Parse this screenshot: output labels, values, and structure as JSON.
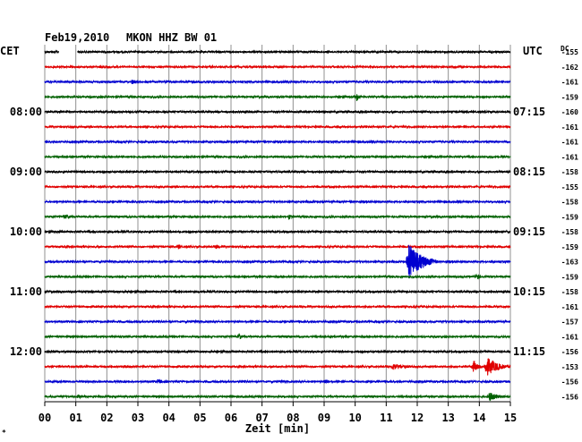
{
  "header": {
    "date": "Feb19,2010",
    "station": "MKON HHZ BW 01"
  },
  "left_timezone": "CET",
  "right_timezone": "UTC",
  "right_column_header": "DC",
  "footer_mark": "*",
  "chart_data": {
    "type": "line",
    "description_free": true,
    "xlabel": "Zeit [min]",
    "xlim": [
      0,
      15
    ],
    "x_ticks": [
      "00",
      "01",
      "02",
      "03",
      "04",
      "05",
      "06",
      "07",
      "08",
      "09",
      "10",
      "11",
      "12",
      "13",
      "14",
      "15"
    ],
    "left_hour_labels": [
      {
        "row": 4,
        "label": "08:00"
      },
      {
        "row": 8,
        "label": "09:00"
      },
      {
        "row": 12,
        "label": "10:00"
      },
      {
        "row": 16,
        "label": "11:00"
      },
      {
        "row": 20,
        "label": "12:00"
      }
    ],
    "right_hour_labels": [
      {
        "row": 4,
        "label": "07:15"
      },
      {
        "row": 8,
        "label": "08:15"
      },
      {
        "row": 12,
        "label": "09:15"
      },
      {
        "row": 16,
        "label": "10:15"
      },
      {
        "row": 20,
        "label": "11:15"
      }
    ],
    "series_colors": [
      "#000000",
      "#e00000",
      "#0000d0",
      "#006000"
    ],
    "traces": [
      {
        "row": 0,
        "color": "#000000",
        "dc": "-155",
        "gaps": [
          [
            0.45,
            1.05
          ]
        ],
        "events": []
      },
      {
        "row": 1,
        "color": "#e00000",
        "dc": "-162",
        "events": []
      },
      {
        "row": 2,
        "color": "#0000d0",
        "dc": "-161",
        "events": [
          {
            "t": 2.8,
            "amp": 3,
            "dur": 0.4
          }
        ]
      },
      {
        "row": 3,
        "color": "#006000",
        "dc": "-159",
        "events": [
          {
            "t": 10.05,
            "amp": 5,
            "dur": 0.2
          }
        ]
      },
      {
        "row": 4,
        "color": "#000000",
        "dc": "-160",
        "events": []
      },
      {
        "row": 5,
        "color": "#e00000",
        "dc": "-161",
        "events": []
      },
      {
        "row": 6,
        "color": "#0000d0",
        "dc": "-161",
        "events": []
      },
      {
        "row": 7,
        "color": "#006000",
        "dc": "-161",
        "events": []
      },
      {
        "row": 8,
        "color": "#000000",
        "dc": "-158",
        "events": []
      },
      {
        "row": 9,
        "color": "#e00000",
        "dc": "-155",
        "events": []
      },
      {
        "row": 10,
        "color": "#0000d0",
        "dc": "-158",
        "events": []
      },
      {
        "row": 11,
        "color": "#006000",
        "dc": "-159",
        "events": [
          {
            "t": 0.6,
            "amp": 3,
            "dur": 0.6
          },
          {
            "t": 7.85,
            "amp": 3,
            "dur": 0.3
          }
        ]
      },
      {
        "row": 12,
        "color": "#000000",
        "dc": "-158",
        "events": []
      },
      {
        "row": 13,
        "color": "#e00000",
        "dc": "-159",
        "events": [
          {
            "t": 4.3,
            "amp": 3,
            "dur": 0.3
          },
          {
            "t": 5.5,
            "amp": 3,
            "dur": 0.3
          }
        ]
      },
      {
        "row": 14,
        "color": "#0000d0",
        "dc": "-163",
        "events": [
          {
            "t": 11.7,
            "amp": 22,
            "dur": 0.9
          }
        ]
      },
      {
        "row": 15,
        "color": "#006000",
        "dc": "-159",
        "events": [
          {
            "t": 13.9,
            "amp": 6,
            "dur": 0.2
          }
        ]
      },
      {
        "row": 16,
        "color": "#000000",
        "dc": "-158",
        "events": []
      },
      {
        "row": 17,
        "color": "#e00000",
        "dc": "-161",
        "events": []
      },
      {
        "row": 18,
        "color": "#0000d0",
        "dc": "-157",
        "events": []
      },
      {
        "row": 19,
        "color": "#006000",
        "dc": "-161",
        "events": [
          {
            "t": 6.25,
            "amp": 5,
            "dur": 0.2
          }
        ]
      },
      {
        "row": 20,
        "color": "#000000",
        "dc": "-156",
        "events": []
      },
      {
        "row": 21,
        "color": "#e00000",
        "dc": "-153",
        "events": [
          {
            "t": 11.2,
            "amp": 4,
            "dur": 1.0
          },
          {
            "t": 13.8,
            "amp": 8,
            "dur": 0.3
          },
          {
            "t": 14.2,
            "amp": 12,
            "dur": 0.8
          }
        ]
      },
      {
        "row": 22,
        "color": "#0000d0",
        "dc": "-156",
        "events": [
          {
            "t": 3.6,
            "amp": 3,
            "dur": 0.6
          },
          {
            "t": 9.0,
            "amp": 3,
            "dur": 0.4
          }
        ]
      },
      {
        "row": 23,
        "color": "#006000",
        "dc": "-156",
        "events": [
          {
            "t": 1.05,
            "amp": 4,
            "dur": 0.2
          },
          {
            "t": 14.3,
            "amp": 5,
            "dur": 0.8
          }
        ]
      }
    ]
  }
}
